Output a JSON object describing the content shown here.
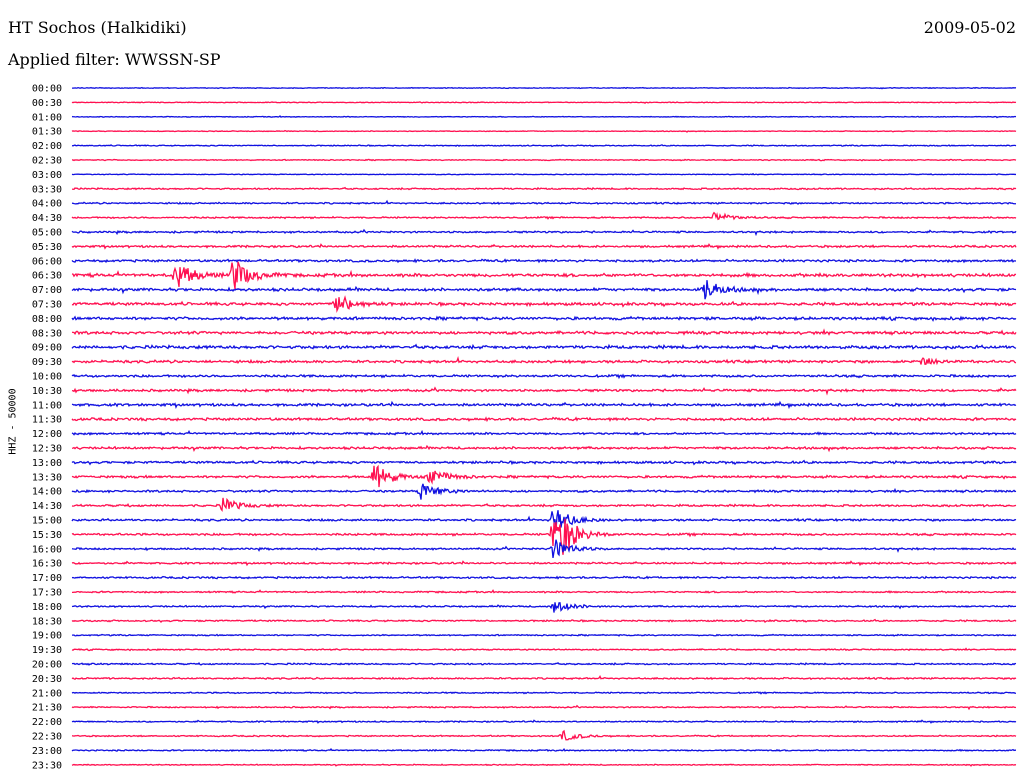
{
  "header": {
    "station": "HT Sochos (Halkidiki)",
    "date": "2009-05-02",
    "filter": "Applied filter: WWSSN-SP"
  },
  "channel_label": "HHZ - 50000",
  "colors": {
    "even": "#1010e0",
    "odd": "#ff1050"
  },
  "chart_data": {
    "type": "line",
    "title": "HT Sochos (Halkidiki)",
    "ylabel": "HHZ - 50000",
    "rows": [
      "00:00",
      "00:30",
      "01:00",
      "01:30",
      "02:00",
      "02:30",
      "03:00",
      "03:30",
      "04:00",
      "04:30",
      "05:00",
      "05:30",
      "06:00",
      "06:30",
      "07:00",
      "07:30",
      "08:00",
      "08:30",
      "09:00",
      "09:30",
      "10:00",
      "10:30",
      "11:00",
      "11:30",
      "12:00",
      "12:30",
      "13:00",
      "13:30",
      "14:00",
      "14:30",
      "15:00",
      "15:30",
      "16:00",
      "16:30",
      "17:00",
      "17:30",
      "18:00",
      "18:30",
      "19:00",
      "19:30",
      "20:00",
      "20:30",
      "21:00",
      "21:30",
      "22:00",
      "22:30",
      "23:00",
      "23:30"
    ],
    "noise_level": [
      0.3,
      0.3,
      0.3,
      0.3,
      0.4,
      0.4,
      0.3,
      0.6,
      0.6,
      0.6,
      0.7,
      0.8,
      0.9,
      1.2,
      1.1,
      1.1,
      1.1,
      1.1,
      1.2,
      1.0,
      0.9,
      0.9,
      1.0,
      1.0,
      0.8,
      0.9,
      0.9,
      0.9,
      0.8,
      0.8,
      0.8,
      0.8,
      0.7,
      0.7,
      0.7,
      0.6,
      0.6,
      0.6,
      0.5,
      0.5,
      0.6,
      0.6,
      0.5,
      0.5,
      0.5,
      0.5,
      0.5,
      0.4
    ],
    "events": [
      {
        "row": 13,
        "x": 0.11,
        "amp": 4
      },
      {
        "row": 13,
        "x": 0.17,
        "amp": 5
      },
      {
        "row": 15,
        "x": 0.28,
        "amp": 3
      },
      {
        "row": 14,
        "x": 0.67,
        "amp": 3
      },
      {
        "row": 27,
        "x": 0.32,
        "amp": 4
      },
      {
        "row": 27,
        "x": 0.38,
        "amp": 2.5
      },
      {
        "row": 28,
        "x": 0.37,
        "amp": 2.5
      },
      {
        "row": 29,
        "x": 0.16,
        "amp": 2
      },
      {
        "row": 31,
        "x": 0.51,
        "amp": 6
      },
      {
        "row": 31,
        "x": 0.52,
        "amp": 3
      },
      {
        "row": 30,
        "x": 0.51,
        "amp": 4
      },
      {
        "row": 32,
        "x": 0.51,
        "amp": 3
      },
      {
        "row": 36,
        "x": 0.51,
        "amp": 2
      },
      {
        "row": 45,
        "x": 0.52,
        "amp": 1.5
      },
      {
        "row": 9,
        "x": 0.68,
        "amp": 1.5
      },
      {
        "row": 19,
        "x": 0.9,
        "amp": 1.2
      }
    ]
  }
}
